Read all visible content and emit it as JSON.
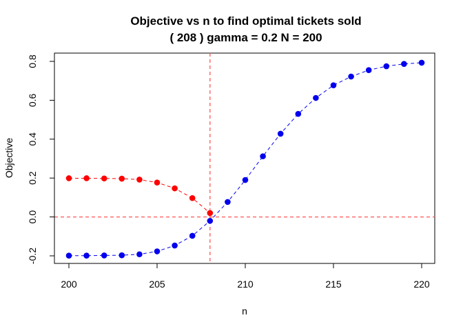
{
  "chart_data": {
    "type": "line",
    "title": "Objective vs n to find optimal tickets sold",
    "subtitle": "( 208 ) gamma = 0.2 N = 200",
    "xlabel": "n",
    "ylabel": "Objective",
    "xlim": [
      200,
      220
    ],
    "ylim": [
      -0.2,
      0.8
    ],
    "x_ticks": [
      "200",
      "205",
      "210",
      "215",
      "220"
    ],
    "y_ticks": [
      "-0.2",
      "0.0",
      "0.2",
      "0.4",
      "0.6",
      "0.8"
    ],
    "grid": false,
    "reference_lines": {
      "vertical_x": 208,
      "horizontal_y": 0,
      "color": "#ff5555"
    },
    "series": [
      {
        "color": "#ff0000",
        "x": [
          200,
          201,
          202,
          203,
          204,
          205,
          206,
          207,
          208
        ],
        "values": [
          0.199,
          0.199,
          0.198,
          0.197,
          0.192,
          0.177,
          0.147,
          0.097,
          0.02
        ]
      },
      {
        "color": "#0000ee",
        "x": [
          200,
          201,
          202,
          203,
          204,
          205,
          206,
          207,
          208,
          209,
          210,
          211,
          212,
          213,
          214,
          215,
          216,
          217,
          218,
          219,
          220
        ],
        "values": [
          -0.199,
          -0.199,
          -0.198,
          -0.197,
          -0.192,
          -0.177,
          -0.147,
          -0.097,
          -0.02,
          0.077,
          0.19,
          0.312,
          0.428,
          0.53,
          0.612,
          0.677,
          0.722,
          0.755,
          0.775,
          0.787,
          0.793
        ]
      }
    ]
  }
}
